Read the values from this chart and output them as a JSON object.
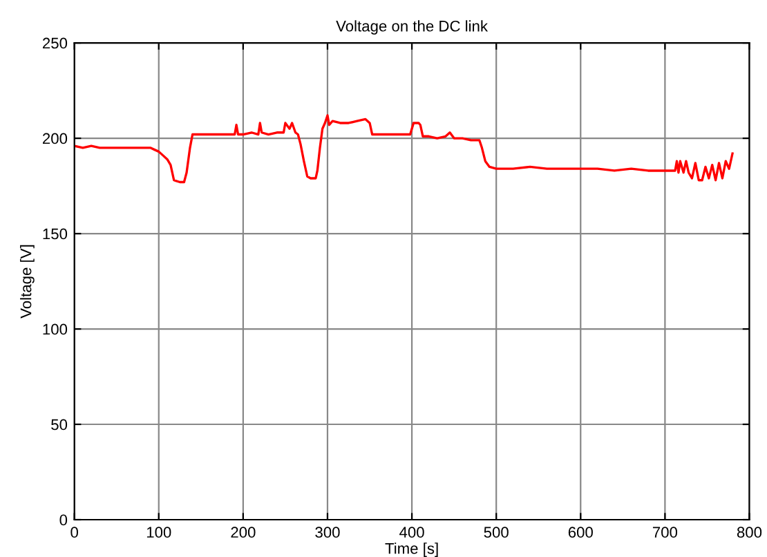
{
  "chart_data": {
    "type": "line",
    "title": "Voltage on the DC link",
    "xlabel": "Time [s]",
    "ylabel": "Voltage [V]",
    "xlim": [
      0,
      800
    ],
    "ylim": [
      0,
      250
    ],
    "xticks": [
      0,
      100,
      200,
      300,
      400,
      500,
      600,
      700,
      800
    ],
    "yticks": [
      0,
      50,
      100,
      150,
      200,
      250
    ],
    "grid": true,
    "marker": "none",
    "line_style": "solid",
    "series": [
      {
        "color": "#ff0000",
        "x": [
          0,
          10,
          20,
          30,
          40,
          50,
          60,
          70,
          80,
          90,
          95,
          100,
          105,
          110,
          114,
          118,
          125,
          130,
          133,
          137,
          140,
          150,
          160,
          180,
          190,
          192,
          194,
          200,
          210,
          218,
          220,
          222,
          230,
          240,
          248,
          250,
          255,
          258,
          262,
          265,
          268,
          272,
          276,
          280,
          286,
          288,
          291,
          294,
          297,
          300,
          302,
          306,
          315,
          325,
          335,
          345,
          350,
          353,
          360,
          380,
          395,
          398,
          402,
          408,
          410,
          413,
          420,
          430,
          440,
          445,
          450,
          460,
          470,
          480,
          483,
          487,
          492,
          500,
          520,
          540,
          560,
          580,
          600,
          620,
          640,
          660,
          680,
          700,
          712,
          714,
          716,
          718,
          722,
          725,
          728,
          732,
          736,
          740,
          744,
          748,
          752,
          756,
          760,
          764,
          768,
          772,
          776,
          780
        ],
        "values": [
          196,
          195,
          196,
          195,
          195,
          195,
          195,
          195,
          195,
          195,
          194,
          193,
          191,
          189,
          186,
          178,
          177,
          177,
          182,
          195,
          202,
          202,
          202,
          202,
          202,
          207,
          202,
          202,
          203,
          202,
          208,
          203,
          202,
          203,
          203,
          208,
          205,
          208,
          203,
          202,
          197,
          188,
          180,
          179,
          179,
          183,
          195,
          205,
          208,
          212,
          207,
          209,
          208,
          208,
          209,
          210,
          208,
          202,
          202,
          202,
          202,
          202,
          208,
          208,
          207,
          201,
          201,
          200,
          201,
          203,
          200,
          200,
          199,
          199,
          195,
          188,
          185,
          184,
          184,
          185,
          184,
          184,
          184,
          184,
          183,
          184,
          183,
          183,
          183,
          188,
          182,
          188,
          182,
          188,
          182,
          179,
          187,
          178,
          178,
          185,
          179,
          186,
          178,
          187,
          179,
          188,
          184,
          192
        ]
      }
    ]
  }
}
